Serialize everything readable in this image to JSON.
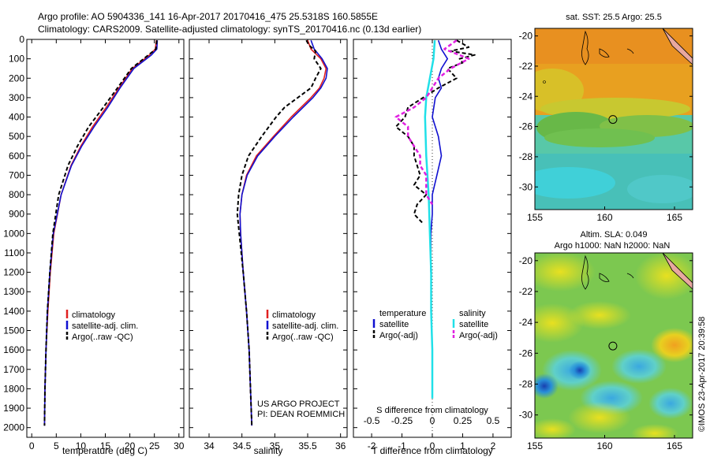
{
  "header": {
    "line1": "Argo profile: AO 5904336_141 16-Apr-2017 20170416_475 25.5318S 160.5855E",
    "line2": "Climatology: CARS2009. Satellite-adjusted climatology: synTS_20170416.nc (0.13d earlier)"
  },
  "colors": {
    "climatology": "#e02020",
    "satellite": "#1010d0",
    "argo": "#000000",
    "sal_satellite": "#20e0e8",
    "sal_argo": "#e020e0"
  },
  "chart_data": [
    {
      "id": "temperature",
      "type": "line",
      "xlabel": "temperature (deg C)",
      "xlim": [
        -1,
        31
      ],
      "xticks": [
        0,
        5,
        10,
        15,
        20,
        25,
        30
      ],
      "ylim": [
        2050,
        0
      ],
      "yticks": [
        0,
        100,
        200,
        300,
        400,
        500,
        600,
        700,
        800,
        900,
        1000,
        1100,
        1200,
        1300,
        1400,
        1500,
        1600,
        1700,
        1800,
        1900,
        2000
      ],
      "legend": [
        "climatology",
        "satellite-adj. clim.",
        "Argo(..raw -QC)"
      ],
      "series": [
        {
          "name": "climatology",
          "depth": [
            5,
            50,
            80,
            150,
            250,
            350,
            450,
            550,
            650,
            800,
            1000,
            1200,
            1400,
            1600,
            1800,
            1990
          ],
          "values": [
            25.4,
            25.2,
            24.0,
            20.5,
            17.8,
            15.2,
            12.4,
            10.0,
            8.0,
            6.0,
            4.5,
            3.8,
            3.3,
            2.9,
            2.7,
            2.6
          ]
        },
        {
          "name": "satellite-adj. clim.",
          "depth": [
            5,
            50,
            80,
            150,
            250,
            350,
            450,
            550,
            650,
            800,
            1000,
            1200,
            1400,
            1600,
            1800,
            1990
          ],
          "values": [
            25.6,
            25.5,
            24.4,
            20.8,
            18.0,
            15.5,
            12.7,
            10.2,
            8.1,
            6.0,
            4.4,
            3.7,
            3.2,
            2.9,
            2.7,
            2.6
          ]
        },
        {
          "name": "Argo(..raw -QC)",
          "depth": [
            5,
            50,
            80,
            150,
            250,
            350,
            450,
            550,
            650,
            800,
            1000,
            1200,
            1400,
            1600,
            1800,
            1990
          ],
          "values": [
            25.5,
            25.3,
            23.8,
            20.3,
            17.5,
            14.6,
            11.6,
            9.3,
            7.4,
            5.5,
            4.3,
            3.7,
            3.2,
            2.9,
            2.7,
            2.6
          ]
        }
      ]
    },
    {
      "id": "salinity",
      "type": "line",
      "xlabel": "salinity",
      "xlim": [
        33.7,
        36.1
      ],
      "xticks": [
        34,
        34.5,
        35,
        35.5,
        36
      ],
      "ylim": [
        2050,
        0
      ],
      "legend": [
        "climatology",
        "satellite-adj. clim.",
        "Argo(..raw -QC)"
      ],
      "annotation": [
        "US ARGO PROJECT",
        "PI: DEAN ROEMMICH"
      ],
      "series": [
        {
          "name": "climatology",
          "depth": [
            5,
            50,
            100,
            150,
            200,
            250,
            300,
            400,
            500,
            600,
            700,
            800,
            900,
            1000,
            1200,
            1400,
            1600,
            1800,
            1990
          ],
          "values": [
            35.5,
            35.55,
            35.7,
            35.78,
            35.75,
            35.68,
            35.55,
            35.25,
            34.98,
            34.72,
            34.57,
            34.5,
            34.47,
            34.48,
            34.52,
            34.57,
            34.61,
            34.63,
            34.65
          ]
        },
        {
          "name": "satellite-adj. clim.",
          "depth": [
            5,
            50,
            100,
            150,
            200,
            250,
            300,
            400,
            500,
            600,
            700,
            800,
            900,
            1000,
            1200,
            1400,
            1600,
            1800,
            1990
          ],
          "values": [
            35.55,
            35.6,
            35.72,
            35.8,
            35.78,
            35.7,
            35.58,
            35.28,
            35.0,
            34.74,
            34.58,
            34.5,
            34.47,
            34.48,
            34.52,
            34.57,
            34.61,
            34.63,
            34.65
          ]
        },
        {
          "name": "Argo(..raw -QC)",
          "depth": [
            5,
            30,
            60,
            100,
            150,
            200,
            250,
            300,
            350,
            400,
            500,
            600,
            700,
            800,
            900,
            1000,
            1200,
            1400,
            1600,
            1800,
            1990
          ],
          "values": [
            35.48,
            35.52,
            35.62,
            35.6,
            35.7,
            35.62,
            35.55,
            35.35,
            35.15,
            35.02,
            34.8,
            34.6,
            34.5,
            34.45,
            34.43,
            34.46,
            34.52,
            34.57,
            34.61,
            34.63,
            34.65
          ]
        }
      ]
    },
    {
      "id": "difference",
      "type": "line",
      "xlabel": "T difference from climatology",
      "xlabel_top": "S difference from climatology",
      "xlim": [
        -2.6,
        2.6
      ],
      "xticks": [
        -2,
        -1,
        0,
        1,
        2
      ],
      "sticks": [
        -0.5,
        -0.25,
        0,
        0.25,
        0.5
      ],
      "sticks_labels": [
        "-0.5",
        "-0.25",
        "0",
        "0.25",
        "0.5"
      ],
      "ylim": [
        2050,
        0
      ],
      "legend_left_title": "temperature",
      "legend_right_title": "salinity",
      "legend_left": [
        "satellite",
        "Argo(-adj)"
      ],
      "legend_right": [
        "satellite",
        "Argo(-adj)"
      ],
      "series": [
        {
          "name": "satellite",
          "depth": [
            5,
            50,
            100,
            150,
            200,
            250,
            300,
            400,
            500,
            600,
            700,
            800,
            900,
            1000,
            1100,
            1200
          ],
          "values": [
            0.2,
            0.3,
            0.5,
            0.3,
            0.2,
            0.3,
            0.1,
            0.0,
            0.2,
            0.3,
            0.15,
            0.0,
            0.0,
            -0.05,
            -0.05,
            -0.05
          ]
        },
        {
          "name": "Argo(-adj)",
          "depth": [
            5,
            40,
            60,
            80,
            100,
            120,
            150,
            200,
            250,
            300,
            350,
            400,
            450,
            500,
            550,
            600,
            650,
            700,
            750,
            800,
            850,
            900,
            950
          ],
          "values": [
            0.8,
            1.2,
            0.6,
            1.4,
            0.9,
            1.0,
            0.5,
            0.8,
            0.2,
            -0.3,
            -0.8,
            -0.9,
            -1.2,
            -0.8,
            -0.6,
            -0.6,
            -0.5,
            -0.4,
            -0.6,
            -0.2,
            -0.5,
            -0.6,
            -0.3
          ]
        },
        {
          "name": "salinity satellite",
          "depth": [
            5,
            100,
            200,
            300,
            400,
            600,
            800,
            1000,
            1200,
            1400,
            1600,
            1800,
            1850
          ],
          "values": [
            0.02,
            0.01,
            -0.02,
            -0.05,
            -0.06,
            -0.05,
            -0.03,
            -0.02,
            -0.01,
            -0.01,
            0.0,
            0.0,
            0.0
          ]
        },
        {
          "name": "salinity Argo(-adj)",
          "depth": [
            5,
            50,
            100,
            150,
            200,
            250,
            300,
            350,
            400,
            450,
            500,
            550,
            600,
            650,
            700,
            750,
            800,
            850
          ],
          "values": [
            0.2,
            0.1,
            0.3,
            0.15,
            0.05,
            0.0,
            -0.05,
            -0.15,
            -0.3,
            -0.2,
            -0.2,
            -0.15,
            -0.1,
            -0.1,
            -0.05,
            -0.05,
            -0.05,
            0.0
          ]
        }
      ]
    },
    {
      "id": "sst_map",
      "type": "heatmap",
      "title": "sat. SST: 25.5 Argo: 25.5",
      "xlim": [
        155,
        166.3
      ],
      "ylim": [
        -31.5,
        -19.5
      ],
      "xticks": [
        155,
        160,
        165
      ],
      "yticks": [
        -20,
        -22,
        -24,
        -26,
        -28,
        -30
      ],
      "marker": {
        "lon": 160.5855,
        "lat": -25.5318
      }
    },
    {
      "id": "sla_map",
      "type": "heatmap",
      "title": "Altim. SLA: 0.049",
      "subtitle": "Argo h1000: NaN h2000: NaN",
      "xlim": [
        155,
        166.3
      ],
      "ylim": [
        -31.5,
        -19.5
      ],
      "xticks": [
        155,
        160,
        165
      ],
      "yticks": [
        -20,
        -22,
        -24,
        -26,
        -28,
        -30
      ],
      "marker": {
        "lon": 160.5855,
        "lat": -25.5318
      }
    }
  ],
  "credit": "©IMOS 23-Apr-2017 20:39:58"
}
